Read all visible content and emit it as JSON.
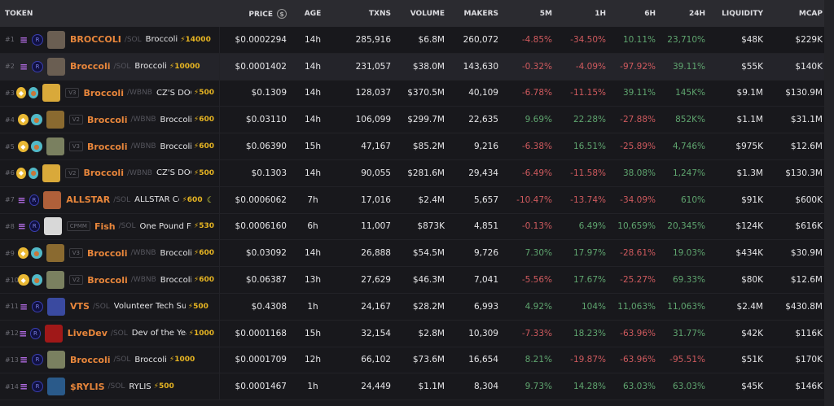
{
  "header": {
    "token": "TOKEN",
    "price": "PRICE",
    "age": "AGE",
    "txns": "TXNS",
    "volume": "VOLUME",
    "makers": "MAKERS",
    "m5": "5M",
    "h1": "1H",
    "h6": "6H",
    "h24": "24H",
    "liquidity": "LIQUIDITY",
    "mcap": "MCAP",
    "currency_icon": "$"
  },
  "colors": {
    "up": "#5fa56f",
    "down": "#cf5a5e",
    "symbol": "#e8863b",
    "boost": "#e6b422"
  },
  "rows": [
    {
      "rank": "#1",
      "chain": "sol",
      "dex": "raydium",
      "avatar": "#6a5e52",
      "version": "",
      "symbol": "BROCCOLI",
      "quote": "/SOL",
      "name": "Broccoli",
      "boost": "⚡14000",
      "extra": "",
      "price": "$0.0002294",
      "age": "14h",
      "txns": "285,916",
      "volume": "$6.8M",
      "makers": "260,072",
      "m5": "-4.85%",
      "h1": "-34.50%",
      "h6": "10.11%",
      "h24": "23,710%",
      "liquidity": "$48K",
      "mcap": "$229K"
    },
    {
      "rank": "#2",
      "chain": "sol",
      "dex": "raydium",
      "avatar": "#6a5e52",
      "version": "",
      "symbol": "Broccoli",
      "quote": "/SOL",
      "name": "Broccoli",
      "boost": "⚡10000",
      "extra": "",
      "price": "$0.0001402",
      "age": "14h",
      "txns": "231,057",
      "volume": "$38.0M",
      "makers": "143,630",
      "m5": "-0.32%",
      "h1": "-4.09%",
      "h6": "-97.92%",
      "h24": "39.11%",
      "liquidity": "$55K",
      "mcap": "$140K"
    },
    {
      "rank": "#3",
      "chain": "bnb",
      "dex": "pancake",
      "avatar": "#d9a93a",
      "version": "V3",
      "symbol": "Broccoli",
      "quote": "/WBNB",
      "name": "CZ'S DOG",
      "boost": "⚡500",
      "extra": "",
      "price": "$0.1309",
      "age": "14h",
      "txns": "128,037",
      "volume": "$370.5M",
      "makers": "40,109",
      "m5": "-6.78%",
      "h1": "-11.15%",
      "h6": "39.11%",
      "h24": "145K%",
      "liquidity": "$9.1M",
      "mcap": "$130.9M"
    },
    {
      "rank": "#4",
      "chain": "bnb",
      "dex": "pancake",
      "avatar": "#8a6a30",
      "version": "V2",
      "symbol": "Broccoli",
      "quote": "/WBNB",
      "name": "Broccoli",
      "boost": "⚡600",
      "extra": "",
      "price": "$0.03110",
      "age": "14h",
      "txns": "106,099",
      "volume": "$299.7M",
      "makers": "22,635",
      "m5": "9.69%",
      "h1": "22.28%",
      "h6": "-27.88%",
      "h24": "852K%",
      "liquidity": "$1.1M",
      "mcap": "$31.1M"
    },
    {
      "rank": "#5",
      "chain": "bnb",
      "dex": "pancake",
      "avatar": "#7a8060",
      "version": "V3",
      "symbol": "Broccoli",
      "quote": "/WBNB",
      "name": "Broccoli",
      "boost": "⚡600",
      "extra": "",
      "price": "$0.06390",
      "age": "15h",
      "txns": "47,167",
      "volume": "$85.2M",
      "makers": "9,216",
      "m5": "-6.38%",
      "h1": "16.51%",
      "h6": "-25.89%",
      "h24": "4,746%",
      "liquidity": "$975K",
      "mcap": "$12.6M"
    },
    {
      "rank": "#6",
      "chain": "bnb",
      "dex": "pancake",
      "avatar": "#d9a93a",
      "version": "V2",
      "symbol": "Broccoli",
      "quote": "/WBNB",
      "name": "CZ'S DOG",
      "boost": "⚡500",
      "extra": "",
      "price": "$0.1303",
      "age": "14h",
      "txns": "90,055",
      "volume": "$281.6M",
      "makers": "29,434",
      "m5": "-6.49%",
      "h1": "-11.58%",
      "h6": "38.08%",
      "h24": "1,247%",
      "liquidity": "$1.3M",
      "mcap": "$130.3M"
    },
    {
      "rank": "#7",
      "chain": "sol",
      "dex": "raydium",
      "avatar": "#b0603a",
      "version": "",
      "symbol": "ALLSTAR",
      "quote": "/SOL",
      "name": "ALLSTAR Coi",
      "boost": "⚡600",
      "extra": "☾",
      "price": "$0.0006062",
      "age": "7h",
      "txns": "17,016",
      "volume": "$2.4M",
      "makers": "5,657",
      "m5": "-10.47%",
      "h1": "-13.74%",
      "h6": "-34.09%",
      "h24": "610%",
      "liquidity": "$91K",
      "mcap": "$600K"
    },
    {
      "rank": "#8",
      "chain": "sol",
      "dex": "raydium",
      "avatar": "#d8d8d8",
      "version": "CPMM",
      "symbol": "Fish",
      "quote": "/SOL",
      "name": "One Pound Fis",
      "boost": "⚡530",
      "extra": "",
      "price": "$0.0006160",
      "age": "6h",
      "txns": "11,007",
      "volume": "$873K",
      "makers": "4,851",
      "m5": "-0.13%",
      "h1": "6.49%",
      "h6": "10,659%",
      "h24": "20,345%",
      "liquidity": "$124K",
      "mcap": "$616K"
    },
    {
      "rank": "#9",
      "chain": "bnb",
      "dex": "pancake",
      "avatar": "#8a6a30",
      "version": "V3",
      "symbol": "Broccoli",
      "quote": "/WBNB",
      "name": "Broccoli",
      "boost": "⚡600",
      "extra": "",
      "price": "$0.03092",
      "age": "14h",
      "txns": "26,888",
      "volume": "$54.5M",
      "makers": "9,726",
      "m5": "7.30%",
      "h1": "17.97%",
      "h6": "-28.61%",
      "h24": "19.03%",
      "liquidity": "$434K",
      "mcap": "$30.9M"
    },
    {
      "rank": "#10",
      "chain": "bnb",
      "dex": "pancake",
      "avatar": "#7a8060",
      "version": "V2",
      "symbol": "Broccoli",
      "quote": "/WBNB",
      "name": "Broccoli",
      "boost": "⚡600",
      "extra": "",
      "price": "$0.06387",
      "age": "13h",
      "txns": "27,629",
      "volume": "$46.3M",
      "makers": "7,041",
      "m5": "-5.56%",
      "h1": "17.67%",
      "h6": "-25.27%",
      "h24": "69.33%",
      "liquidity": "$80K",
      "mcap": "$12.6M"
    },
    {
      "rank": "#11",
      "chain": "sol",
      "dex": "raydium",
      "avatar": "#3a4aa0",
      "version": "",
      "symbol": "VTS",
      "quote": "/SOL",
      "name": "Volunteer Tech Supp",
      "boost": "⚡500",
      "extra": "",
      "price": "$0.4308",
      "age": "1h",
      "txns": "24,167",
      "volume": "$28.2M",
      "makers": "6,993",
      "m5": "4.92%",
      "h1": "104%",
      "h6": "11,063%",
      "h24": "11,063%",
      "liquidity": "$2.4M",
      "mcap": "$430.8M"
    },
    {
      "rank": "#12",
      "chain": "sol",
      "dex": "raydium",
      "avatar": "#a01818",
      "version": "",
      "symbol": "LiveDev",
      "quote": "/SOL",
      "name": "Dev of the Year",
      "boost": "⚡1000",
      "extra": "",
      "price": "$0.0001168",
      "age": "15h",
      "txns": "32,154",
      "volume": "$2.8M",
      "makers": "10,309",
      "m5": "-7.33%",
      "h1": "18.23%",
      "h6": "-63.96%",
      "h24": "31.77%",
      "liquidity": "$42K",
      "mcap": "$116K"
    },
    {
      "rank": "#13",
      "chain": "sol",
      "dex": "raydium",
      "avatar": "#7a8060",
      "version": "",
      "symbol": "Broccoli",
      "quote": "/SOL",
      "name": "Broccoli",
      "boost": "⚡1000",
      "extra": "",
      "price": "$0.0001709",
      "age": "12h",
      "txns": "66,102",
      "volume": "$73.6M",
      "makers": "16,654",
      "m5": "8.21%",
      "h1": "-19.87%",
      "h6": "-63.96%",
      "h24": "-95.51%",
      "liquidity": "$51K",
      "mcap": "$170K"
    },
    {
      "rank": "#14",
      "chain": "sol",
      "dex": "raydium",
      "avatar": "#2a5a8a",
      "version": "",
      "symbol": "$RYLIS",
      "quote": "/SOL",
      "name": "RYLIS",
      "boost": "⚡500",
      "extra": "",
      "price": "$0.0001467",
      "age": "1h",
      "txns": "24,449",
      "volume": "$1.1M",
      "makers": "8,304",
      "m5": "9.73%",
      "h1": "14.28%",
      "h6": "63.03%",
      "h24": "63.03%",
      "liquidity": "$45K",
      "mcap": "$146K"
    }
  ]
}
